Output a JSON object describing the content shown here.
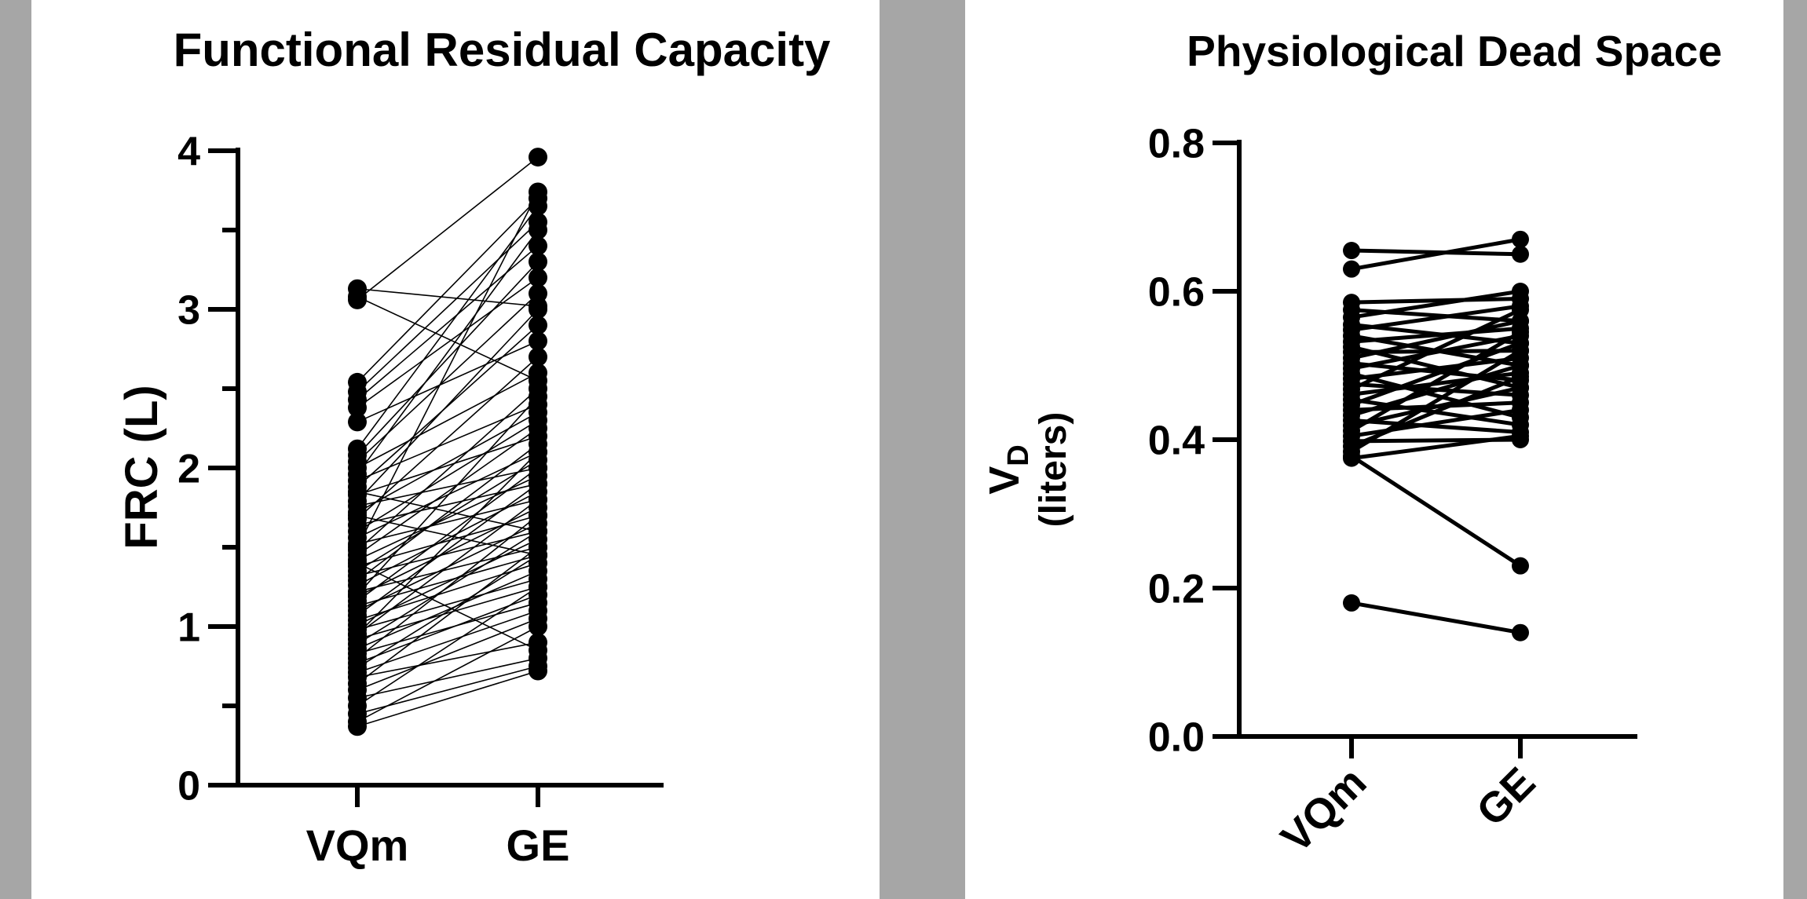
{
  "chart_data": [
    {
      "type": "scatter",
      "subtype": "paired-dot",
      "title": "Functional Residual Capacity",
      "ylabel": "FRC (L)",
      "categories": [
        "VQm",
        "GE"
      ],
      "ylim": [
        0,
        4
      ],
      "yticks": [
        "0",
        "1",
        "2",
        "3",
        "4"
      ],
      "pairs": [
        [
          3.13,
          3.02
        ],
        [
          3.08,
          2.55
        ],
        [
          3.06,
          3.96
        ],
        [
          2.54,
          3.7
        ],
        [
          2.48,
          3.55
        ],
        [
          2.43,
          3.4
        ],
        [
          2.38,
          3.2
        ],
        [
          2.29,
          2.8
        ],
        [
          2.12,
          3.65
        ],
        [
          2.08,
          3.3
        ],
        [
          2.04,
          3.1
        ],
        [
          2.0,
          2.6
        ],
        [
          1.96,
          3.5
        ],
        [
          1.92,
          2.4
        ],
        [
          1.88,
          2.9
        ],
        [
          1.83,
          2.2
        ],
        [
          1.79,
          3.0
        ],
        [
          1.76,
          2.0
        ],
        [
          1.72,
          2.35
        ],
        [
          1.68,
          2.7
        ],
        [
          1.64,
          1.9
        ],
        [
          1.6,
          2.3
        ],
        [
          1.56,
          2.1
        ],
        [
          1.52,
          1.8
        ],
        [
          1.48,
          2.5
        ],
        [
          1.45,
          2.25
        ],
        [
          1.42,
          1.95
        ],
        [
          1.38,
          1.7
        ],
        [
          1.35,
          2.05
        ],
        [
          1.32,
          1.6
        ],
        [
          1.29,
          2.15
        ],
        [
          1.26,
          1.85
        ],
        [
          1.22,
          1.5
        ],
        [
          1.19,
          1.75
        ],
        [
          1.16,
          2.0
        ],
        [
          1.13,
          1.45
        ],
        [
          1.1,
          1.65
        ],
        [
          1.07,
          1.9
        ],
        [
          1.04,
          1.4
        ],
        [
          1.01,
          1.55
        ],
        [
          0.98,
          1.3
        ],
        [
          0.95,
          1.8
        ],
        [
          0.92,
          1.25
        ],
        [
          0.89,
          1.6
        ],
        [
          0.86,
          1.35
        ],
        [
          0.83,
          1.15
        ],
        [
          0.8,
          1.7
        ],
        [
          0.77,
          1.2
        ],
        [
          0.74,
          1.45
        ],
        [
          0.71,
          1.1
        ],
        [
          0.68,
          0.9
        ],
        [
          0.64,
          1.5
        ],
        [
          0.6,
          1.05
        ],
        [
          0.55,
          0.8
        ],
        [
          0.5,
          1.25
        ],
        [
          0.45,
          0.75
        ],
        [
          0.4,
          1.0
        ],
        [
          0.37,
          0.72
        ],
        [
          1.5,
          3.74
        ],
        [
          1.2,
          2.45
        ],
        [
          0.95,
          2.1
        ],
        [
          1.7,
          1.45
        ],
        [
          1.85,
          1.6
        ],
        [
          1.4,
          0.85
        ]
      ]
    },
    {
      "type": "scatter",
      "subtype": "paired-dot",
      "title": "Physiological Dead Space",
      "ylabel": "V",
      "ylabel_sub": "D",
      "ylabel_line2": "(liters)",
      "categories": [
        "VQm",
        "GE"
      ],
      "ylim": [
        0,
        0.8
      ],
      "yticks": [
        "0.0",
        "0.2",
        "0.4",
        "0.6",
        "0.8"
      ],
      "pairs": [
        [
          0.655,
          0.65
        ],
        [
          0.63,
          0.67
        ],
        [
          0.585,
          0.59
        ],
        [
          0.575,
          0.56
        ],
        [
          0.565,
          0.6
        ],
        [
          0.555,
          0.53
        ],
        [
          0.548,
          0.58
        ],
        [
          0.54,
          0.5
        ],
        [
          0.532,
          0.55
        ],
        [
          0.525,
          0.47
        ],
        [
          0.518,
          0.52
        ],
        [
          0.51,
          0.56
        ],
        [
          0.503,
          0.48
        ],
        [
          0.496,
          0.54
        ],
        [
          0.489,
          0.43
        ],
        [
          0.482,
          0.51
        ],
        [
          0.475,
          0.46
        ],
        [
          0.468,
          0.575
        ],
        [
          0.461,
          0.49
        ],
        [
          0.454,
          0.42
        ],
        [
          0.447,
          0.53
        ],
        [
          0.44,
          0.45
        ],
        [
          0.433,
          0.5
        ],
        [
          0.426,
          0.41
        ],
        [
          0.419,
          0.47
        ],
        [
          0.412,
          0.545
        ],
        [
          0.405,
          0.44
        ],
        [
          0.398,
          0.4
        ],
        [
          0.391,
          0.485
        ],
        [
          0.384,
          0.52
        ],
        [
          0.378,
          0.23
        ],
        [
          0.375,
          0.405
        ],
        [
          0.18,
          0.14
        ]
      ]
    }
  ]
}
